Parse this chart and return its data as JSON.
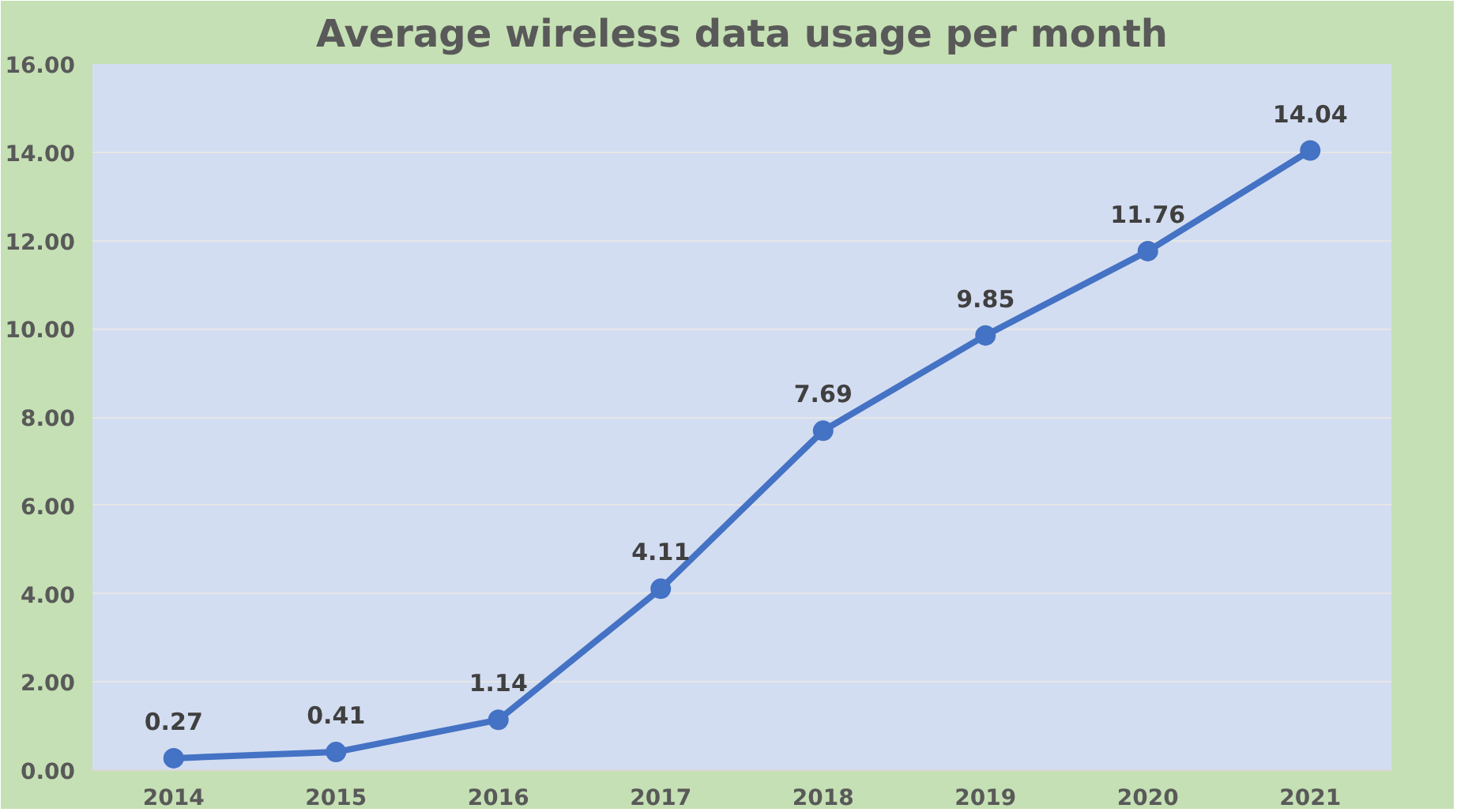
{
  "chart_data": {
    "type": "line",
    "title": "Average wireless data usage per month",
    "categories": [
      "2014",
      "2015",
      "2016",
      "2017",
      "2018",
      "2019",
      "2020",
      "2021"
    ],
    "series": [
      {
        "color": "#4472c4",
        "values": [
          0.27,
          0.41,
          1.14,
          4.11,
          7.69,
          9.85,
          11.76,
          14.04
        ]
      }
    ],
    "ylim": [
      0,
      16
    ],
    "yticks": [
      {
        "value": 0,
        "label": "0.00"
      },
      {
        "value": 2,
        "label": "2.00"
      },
      {
        "value": 4,
        "label": "4.00"
      },
      {
        "value": 6,
        "label": "6.00"
      },
      {
        "value": 8,
        "label": "8.00"
      },
      {
        "value": 10,
        "label": "10.00"
      },
      {
        "value": 12,
        "label": "12.00"
      },
      {
        "value": 14,
        "label": "14.00"
      },
      {
        "value": 16,
        "label": "16.00"
      }
    ],
    "grid": "y",
    "marker": "circle",
    "line_style": "solid",
    "data_labels": true
  }
}
